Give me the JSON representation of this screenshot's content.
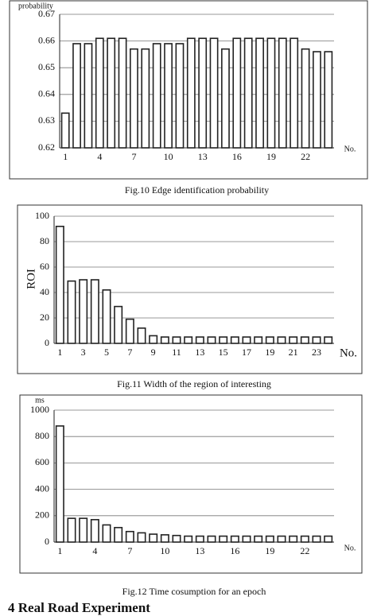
{
  "chart_data": [
    {
      "type": "bar",
      "title": "Fig.10 Edge identification probability",
      "y_label": "probability",
      "x_label": "No.",
      "categories": [
        "1",
        null,
        null,
        "4",
        null,
        null,
        "7",
        null,
        null,
        "10",
        null,
        null,
        "13",
        null,
        null,
        "16",
        null,
        null,
        "19",
        null,
        null,
        "22",
        null,
        null
      ],
      "values": [
        0.633,
        0.659,
        0.659,
        0.661,
        0.661,
        0.661,
        0.657,
        0.657,
        0.659,
        0.659,
        0.659,
        0.661,
        0.661,
        0.661,
        0.657,
        0.661,
        0.661,
        0.661,
        0.661,
        0.661,
        0.661,
        0.657,
        0.656,
        0.656
      ],
      "color": "#222222",
      "ylim": [
        0.62,
        0.67
      ],
      "yticks": [
        0.62,
        0.63,
        0.64,
        0.65,
        0.66,
        0.67
      ],
      "grid": true
    },
    {
      "type": "bar",
      "title": "Fig.11 Width of the region of interesting",
      "y_label": "ROI",
      "x_label": "No.",
      "categories": [
        "1",
        null,
        "3",
        null,
        "5",
        null,
        "7",
        null,
        "9",
        null,
        "11",
        null,
        "13",
        null,
        "15",
        null,
        "17",
        null,
        "19",
        null,
        "21",
        null,
        "23",
        null
      ],
      "values": [
        92,
        49,
        50,
        50,
        42,
        29,
        19,
        12,
        6,
        5,
        5,
        5,
        5,
        5,
        5,
        5,
        5,
        5,
        5,
        5,
        5,
        5,
        5,
        5
      ],
      "color": "#222222",
      "ylim": [
        0,
        100
      ],
      "yticks": [
        0,
        20,
        40,
        60,
        80,
        100
      ],
      "grid": true
    },
    {
      "type": "bar",
      "title": "Fig.12 Time cosumption for an epoch",
      "y_label": "ms",
      "x_label": "No.",
      "categories": [
        "1",
        null,
        null,
        "4",
        null,
        null,
        "7",
        null,
        null,
        "10",
        null,
        null,
        "13",
        null,
        null,
        "16",
        null,
        null,
        "19",
        null,
        null,
        "22",
        null,
        null
      ],
      "values": [
        880,
        180,
        180,
        170,
        130,
        110,
        80,
        70,
        60,
        55,
        50,
        45,
        45,
        45,
        45,
        45,
        45,
        45,
        45,
        45,
        45,
        45,
        45,
        45
      ],
      "color": "#222222",
      "ylim": [
        0,
        1000
      ],
      "yticks": [
        0,
        200,
        400,
        600,
        800,
        1000
      ],
      "grid": true
    }
  ],
  "footer": "4 Real Road Experiment"
}
